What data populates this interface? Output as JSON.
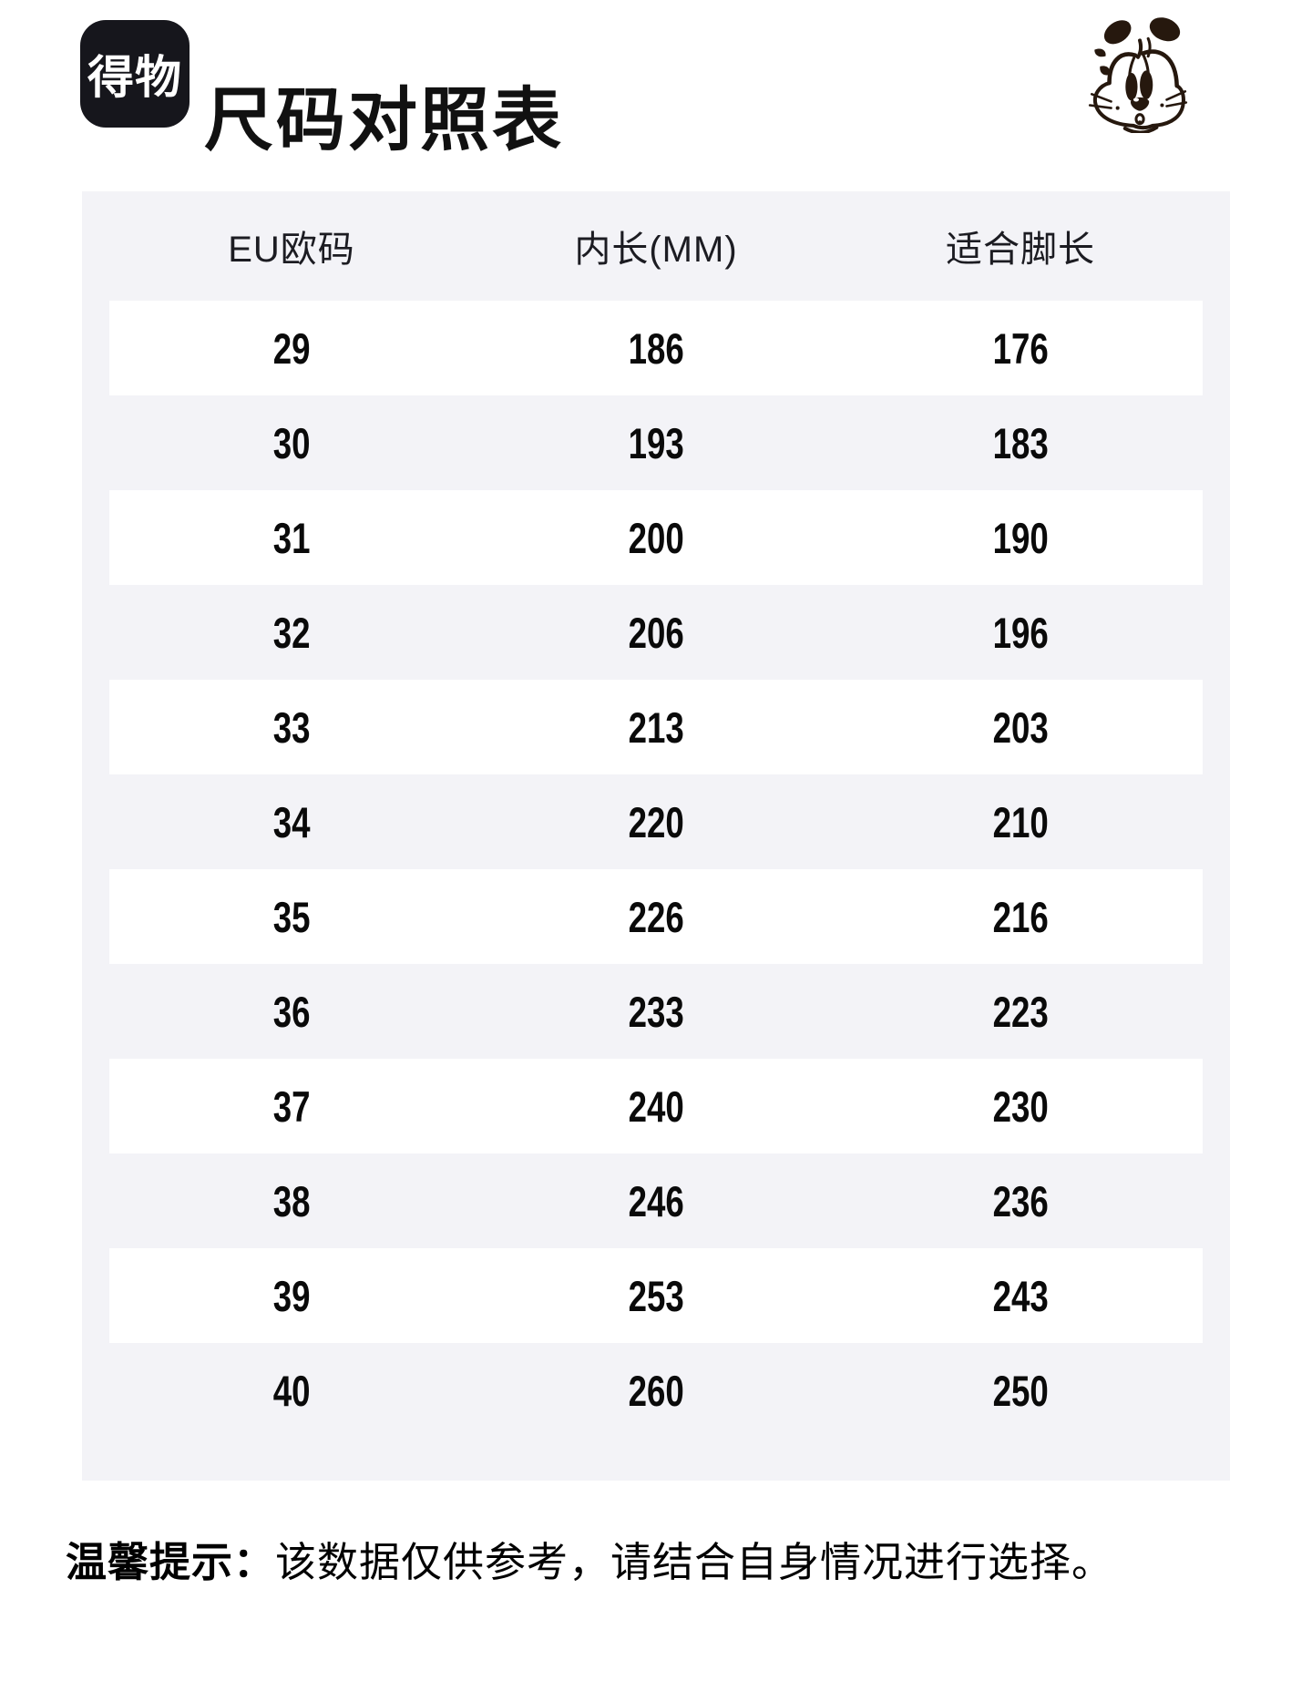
{
  "header": {
    "logo_text": "得物",
    "title": "尺码对照表",
    "mascot_icon": "dog-face-icon"
  },
  "table": {
    "columns": [
      "EU欧码",
      "内长(MM)",
      "适合脚长"
    ],
    "rows": [
      [
        "29",
        "186",
        "176"
      ],
      [
        "30",
        "193",
        "183"
      ],
      [
        "31",
        "200",
        "190"
      ],
      [
        "32",
        "206",
        "196"
      ],
      [
        "33",
        "213",
        "203"
      ],
      [
        "34",
        "220",
        "210"
      ],
      [
        "35",
        "226",
        "216"
      ],
      [
        "36",
        "233",
        "223"
      ],
      [
        "37",
        "240",
        "230"
      ],
      [
        "38",
        "246",
        "236"
      ],
      [
        "39",
        "253",
        "243"
      ],
      [
        "40",
        "260",
        "250"
      ]
    ]
  },
  "footer": {
    "tip_label": "温馨提示：",
    "tip_text": "该数据仅供参考，请结合自身情况进行选择。"
  },
  "colors": {
    "ink": "#111111",
    "logo_bg": "#16161c",
    "table_bg": "#f3f3f7",
    "row_white": "#ffffff",
    "mascot_ink": "#26180e"
  }
}
